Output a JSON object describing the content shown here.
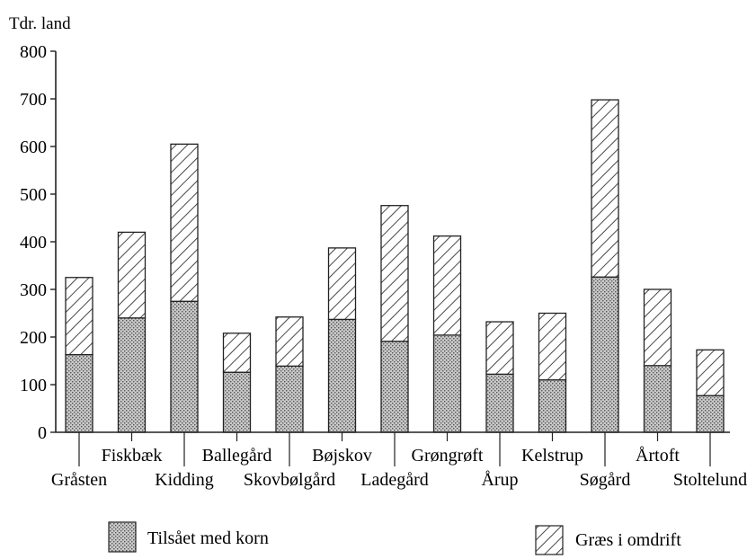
{
  "chart_data": {
    "type": "bar",
    "stacked": true,
    "ylabel": "Tdr. land",
    "ylim": [
      0,
      800
    ],
    "yticks": [
      0,
      100,
      200,
      300,
      400,
      500,
      600,
      700,
      800
    ],
    "categories": [
      "Gråsten",
      "Fiskbæk",
      "Kidding",
      "Ballegård",
      "Skovbølgård",
      "Bøjskov",
      "Ladegård",
      "Grøngrøft",
      "Årup",
      "Kelstrup",
      "Søgård",
      "Årtoft",
      "Stoltelund"
    ],
    "series": [
      {
        "name": "Tilsået med korn",
        "values": [
          163,
          240,
          275,
          126,
          139,
          237,
          191,
          204,
          122,
          110,
          326,
          140,
          77
        ],
        "fill": "dotted"
      },
      {
        "name": "Græs i omdrift",
        "values": [
          162,
          180,
          330,
          82,
          103,
          150,
          285,
          208,
          110,
          140,
          372,
          160,
          96
        ],
        "fill": "hatched"
      }
    ],
    "legend_position": "bottom",
    "grid": false
  }
}
